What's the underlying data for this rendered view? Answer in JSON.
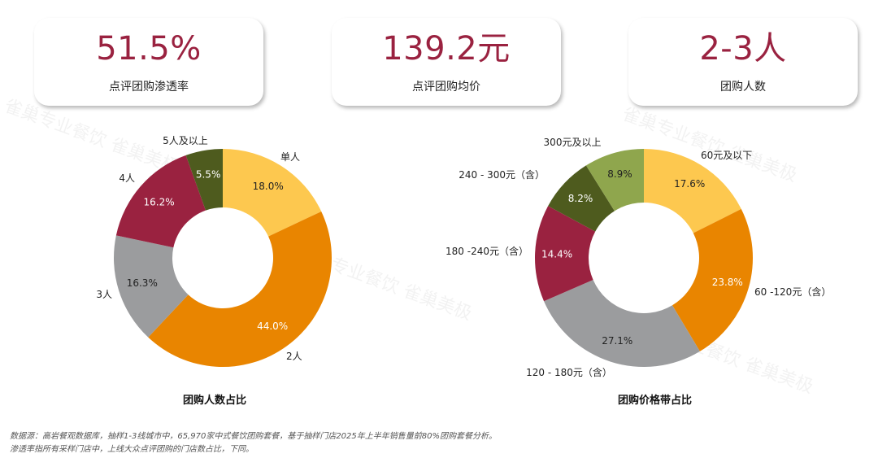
{
  "kpis": [
    {
      "value": "51.5%",
      "label": "点评团购渗透率"
    },
    {
      "value": "139.2元",
      "label": "点评团购均价"
    },
    {
      "value": "2-3人",
      "label": "团购人数"
    }
  ],
  "chart_data": [
    {
      "type": "pie",
      "donut": true,
      "title": "团购人数占比",
      "categories": [
        "单人",
        "2人",
        "3人",
        "4人",
        "5人及以上"
      ],
      "values": [
        18.0,
        44.0,
        16.3,
        16.2,
        5.5
      ],
      "value_labels": [
        "18.0%",
        "44.0%",
        "16.3%",
        "16.2%",
        "5.5%"
      ],
      "colors": [
        "#fdc84f",
        "#e98500",
        "#9b9c9e",
        "#9a2240",
        "#4e5b1e"
      ]
    },
    {
      "type": "pie",
      "donut": true,
      "title": "团购价格带占比",
      "categories": [
        "60元及以下",
        "60 -120元（含）",
        "120 - 180元（含）",
        "180 -240元（含）",
        "240 - 300元（含）",
        "300元及以上"
      ],
      "values": [
        17.6,
        23.8,
        27.1,
        14.4,
        8.2,
        8.9
      ],
      "value_labels": [
        "17.6%",
        "23.8%",
        "27.1%",
        "14.4%",
        "8.2%",
        "8.9%"
      ],
      "colors": [
        "#fdc84f",
        "#e98500",
        "#9b9c9e",
        "#9a2240",
        "#4e5b1e",
        "#8fa64d"
      ]
    }
  ],
  "notes": [
    "数据源：高岩餐观数据库，抽样1-3线城市中，65,970家中式餐饮团购套餐，基于抽样门店2025年上半年销售量前80%团购套餐分析。",
    "渗透率指所有采样门店中，上线大众点评团购的门店数占比，下同。"
  ],
  "watermark": "雀巢专业餐饮 雀巢美极"
}
